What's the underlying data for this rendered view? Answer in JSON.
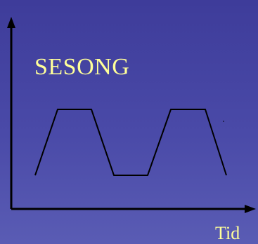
{
  "diagram": {
    "title": "SESONG",
    "x_axis_label": "Tid"
  },
  "colors": {
    "background_top": "#3e3c9a",
    "background_bottom": "#5a5cb4",
    "text": "#ffff99",
    "lines": "#000000"
  }
}
